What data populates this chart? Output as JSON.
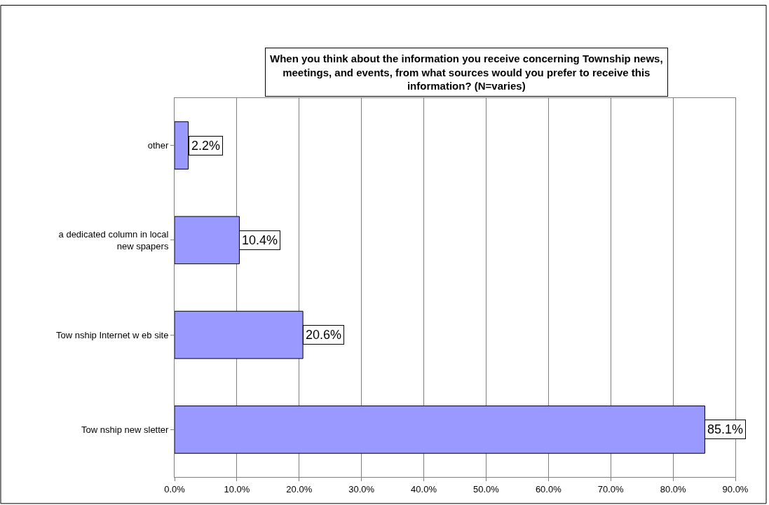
{
  "chart_data": {
    "type": "bar",
    "orientation": "horizontal",
    "title": "When you think about the information you receive concerning Township news,\nmeetings, and events, from what sources would you prefer to receive this\ninformation? (N=varies)",
    "categories": [
      "other",
      "a dedicated column in local\nnew spapers",
      "Tow nship Internet w eb site",
      "Tow nship new sletter"
    ],
    "values": [
      2.2,
      10.4,
      20.6,
      85.1
    ],
    "value_labels": [
      "2.2%",
      "10.4%",
      "20.6%",
      "85.1%"
    ],
    "color": "#9999ff",
    "xlim": [
      0,
      90
    ],
    "xticks": [
      {
        "value": 0,
        "label": "0.0%"
      },
      {
        "value": 10,
        "label": "10.0%"
      },
      {
        "value": 20,
        "label": "20.0%"
      },
      {
        "value": 30,
        "label": "30.0%"
      },
      {
        "value": 40,
        "label": "40.0%"
      },
      {
        "value": 50,
        "label": "50.0%"
      },
      {
        "value": 60,
        "label": "60.0%"
      },
      {
        "value": 70,
        "label": "70.0%"
      },
      {
        "value": 80,
        "label": "80.0%"
      },
      {
        "value": 90,
        "label": "90.0%"
      }
    ],
    "grid": "x"
  }
}
